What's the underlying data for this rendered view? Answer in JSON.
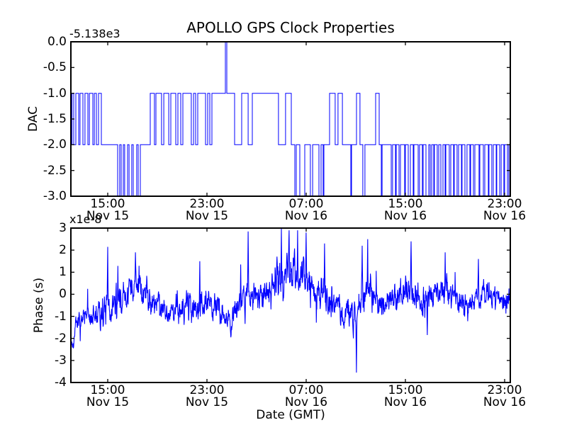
{
  "chart_data": {
    "type": "line",
    "title": "APOLLO GPS Clock Properties",
    "line_color": "#0000ff",
    "axis_color": "#000000",
    "background": "#ffffff",
    "x_axis": {
      "label": "Date (GMT)",
      "hours_total": 35.43,
      "tick_hours": [
        2.97,
        10.97,
        18.97,
        26.97,
        34.97
      ],
      "tick_time_labels": [
        "15:00",
        "23:00",
        "07:00",
        "15:00",
        "23:00"
      ],
      "tick_date_labels": [
        "Nov 15",
        "Nov 15",
        "Nov 16",
        "Nov 16",
        "Nov 16"
      ]
    },
    "subplots": [
      {
        "name": "dac",
        "ylabel": "DAC",
        "offset_text": "-5.138e3",
        "ylim": [
          -3,
          0
        ],
        "ytick_values": [
          0,
          -0.5,
          -1,
          -1.5,
          -2,
          -2.5,
          -3
        ],
        "ytick_labels": [
          "0.0",
          "-0.5",
          "-1.0",
          "-1.5",
          "-2.0",
          "-2.5",
          "-3.0"
        ],
        "series_type": "step",
        "transitions": [
          [
            0.0,
            -2
          ],
          [
            0.09,
            -1
          ],
          [
            0.23,
            -2
          ],
          [
            0.4,
            -1
          ],
          [
            0.63,
            -2
          ],
          [
            0.74,
            -1
          ],
          [
            0.97,
            -2
          ],
          [
            1.14,
            -1
          ],
          [
            1.37,
            -2
          ],
          [
            1.49,
            -1
          ],
          [
            1.77,
            -2
          ],
          [
            1.89,
            -1
          ],
          [
            2.06,
            -2
          ],
          [
            2.23,
            -1
          ],
          [
            2.46,
            -2
          ],
          [
            3.77,
            -3
          ],
          [
            3.94,
            -2
          ],
          [
            4.06,
            -3
          ],
          [
            4.23,
            -2
          ],
          [
            4.34,
            -3
          ],
          [
            4.57,
            -2
          ],
          [
            4.69,
            -3
          ],
          [
            4.91,
            -2
          ],
          [
            5.03,
            -3
          ],
          [
            5.31,
            -2
          ],
          [
            5.43,
            -3
          ],
          [
            5.6,
            -2
          ],
          [
            6.4,
            -1
          ],
          [
            6.74,
            -2
          ],
          [
            6.86,
            -1
          ],
          [
            7.31,
            -2
          ],
          [
            7.49,
            -1
          ],
          [
            7.89,
            -2
          ],
          [
            8.06,
            -1
          ],
          [
            8.46,
            -2
          ],
          [
            8.63,
            -1
          ],
          [
            8.86,
            -2
          ],
          [
            9.03,
            -1
          ],
          [
            9.71,
            -2
          ],
          [
            9.89,
            -1
          ],
          [
            10.06,
            -2
          ],
          [
            10.23,
            -1
          ],
          [
            10.86,
            -2
          ],
          [
            11.03,
            -1
          ],
          [
            11.2,
            -2
          ],
          [
            11.37,
            -1
          ],
          [
            12.46,
            0
          ],
          [
            12.57,
            -1
          ],
          [
            13.2,
            -2
          ],
          [
            13.77,
            -1
          ],
          [
            14.29,
            -2
          ],
          [
            14.63,
            -1
          ],
          [
            16.74,
            -2
          ],
          [
            17.31,
            -1
          ],
          [
            17.77,
            -2
          ],
          [
            18.06,
            -3
          ],
          [
            18.17,
            -2
          ],
          [
            18.46,
            -3
          ],
          [
            18.86,
            -2
          ],
          [
            19.31,
            -3
          ],
          [
            19.49,
            -2
          ],
          [
            20.0,
            -3
          ],
          [
            20.17,
            -2
          ],
          [
            20.34,
            -3
          ],
          [
            20.4,
            -2
          ],
          [
            20.86,
            -1
          ],
          [
            21.31,
            -2
          ],
          [
            21.54,
            -1
          ],
          [
            21.89,
            -2
          ],
          [
            22.57,
            -3
          ],
          [
            22.63,
            -2
          ],
          [
            23.03,
            -1
          ],
          [
            23.31,
            -2
          ],
          [
            23.54,
            -3
          ],
          [
            23.71,
            -2
          ],
          [
            24.57,
            -1
          ],
          [
            24.86,
            -2
          ],
          [
            25.03,
            -3
          ],
          [
            25.09,
            -2
          ],
          [
            25.83,
            -3
          ],
          [
            25.94,
            -2
          ],
          [
            26.17,
            -3
          ],
          [
            26.23,
            -2
          ],
          [
            26.46,
            -3
          ],
          [
            26.57,
            -2
          ],
          [
            26.91,
            -3
          ],
          [
            26.97,
            -2
          ],
          [
            27.2,
            -3
          ],
          [
            27.37,
            -2
          ],
          [
            27.6,
            -3
          ],
          [
            27.66,
            -2
          ],
          [
            28.0,
            -3
          ],
          [
            28.11,
            -2
          ],
          [
            28.34,
            -3
          ],
          [
            28.4,
            -2
          ],
          [
            28.63,
            -3
          ],
          [
            28.86,
            -2
          ],
          [
            28.97,
            -3
          ],
          [
            29.09,
            -2
          ],
          [
            29.26,
            -3
          ],
          [
            29.31,
            -2
          ],
          [
            29.54,
            -3
          ],
          [
            29.66,
            -2
          ],
          [
            29.83,
            -3
          ],
          [
            30.0,
            -2
          ],
          [
            30.17,
            -3
          ],
          [
            30.23,
            -2
          ],
          [
            30.51,
            -3
          ],
          [
            30.63,
            -2
          ],
          [
            30.86,
            -3
          ],
          [
            30.91,
            -2
          ],
          [
            31.14,
            -3
          ],
          [
            31.26,
            -2
          ],
          [
            31.49,
            -3
          ],
          [
            31.54,
            -2
          ],
          [
            31.77,
            -3
          ],
          [
            31.94,
            -2
          ],
          [
            32.17,
            -3
          ],
          [
            32.23,
            -2
          ],
          [
            32.46,
            -3
          ],
          [
            32.57,
            -2
          ],
          [
            32.91,
            -3
          ],
          [
            32.97,
            -2
          ],
          [
            33.26,
            -3
          ],
          [
            33.37,
            -2
          ],
          [
            33.66,
            -3
          ],
          [
            33.71,
            -2
          ],
          [
            33.94,
            -3
          ],
          [
            34.06,
            -2
          ],
          [
            34.29,
            -3
          ],
          [
            34.34,
            -2
          ],
          [
            34.57,
            -3
          ],
          [
            34.69,
            -2
          ],
          [
            34.91,
            -3
          ],
          [
            34.97,
            -2
          ],
          [
            35.2,
            -3
          ],
          [
            35.31,
            -2
          ]
        ]
      },
      {
        "name": "phase",
        "ylabel": "Phase (s)",
        "xlabel": "Date (GMT)",
        "offset_text": "x1e-8",
        "ylim": [
          -4,
          3
        ],
        "unit_scale": "1e-8 s",
        "ytick_values": [
          3,
          2,
          1,
          0,
          -1,
          -2,
          -3,
          -4
        ],
        "ytick_labels": [
          "3",
          "2",
          "1",
          "0",
          "-1",
          "-2",
          "-3",
          "-4"
        ],
        "series_type": "noisy-line",
        "keyframes": [
          [
            0.0,
            -2.05,
            0.25
          ],
          [
            0.15,
            -2.25,
            0.25
          ],
          [
            0.35,
            -1.6,
            0.3
          ],
          [
            0.7,
            -1.15,
            0.35
          ],
          [
            1.4,
            -1.0,
            0.4
          ],
          [
            2.3,
            -0.9,
            0.5
          ],
          [
            3.0,
            -0.75,
            0.6
          ],
          [
            3.7,
            -0.45,
            0.6
          ],
          [
            4.6,
            0.1,
            0.6
          ],
          [
            5.4,
            0.3,
            0.65
          ],
          [
            6.3,
            0.0,
            0.65
          ],
          [
            7.1,
            -0.4,
            0.55
          ],
          [
            7.9,
            -0.85,
            0.45
          ],
          [
            8.7,
            -0.6,
            0.5
          ],
          [
            9.6,
            -0.45,
            0.55
          ],
          [
            10.4,
            -0.4,
            0.55
          ],
          [
            11.3,
            -0.55,
            0.5
          ],
          [
            12.3,
            -0.85,
            0.5
          ],
          [
            12.9,
            -1.05,
            0.5
          ],
          [
            13.6,
            -0.35,
            0.55
          ],
          [
            14.3,
            0.05,
            0.7
          ],
          [
            14.9,
            -0.3,
            0.55
          ],
          [
            15.6,
            0.05,
            0.55
          ],
          [
            16.3,
            0.35,
            0.6
          ],
          [
            17.0,
            0.85,
            0.8
          ],
          [
            17.7,
            1.3,
            0.75
          ],
          [
            18.3,
            0.8,
            0.75
          ],
          [
            19.0,
            0.45,
            0.65
          ],
          [
            19.7,
            0.15,
            0.6
          ],
          [
            20.5,
            0.0,
            0.6
          ],
          [
            21.3,
            -0.5,
            0.5
          ],
          [
            22.2,
            -0.8,
            0.55
          ],
          [
            22.9,
            -0.95,
            0.6
          ],
          [
            23.25,
            -0.5,
            0.6
          ],
          [
            23.5,
            0.0,
            0.65
          ],
          [
            23.95,
            0.2,
            0.6
          ],
          [
            24.6,
            -0.2,
            0.55
          ],
          [
            25.3,
            -0.4,
            0.5
          ],
          [
            26.1,
            -0.1,
            0.55
          ],
          [
            26.7,
            0.1,
            0.6
          ],
          [
            27.4,
            0.1,
            0.6
          ],
          [
            28.1,
            -0.2,
            0.6
          ],
          [
            28.75,
            -0.4,
            0.6
          ],
          [
            29.4,
            0.1,
            0.55
          ],
          [
            30.2,
            0.1,
            0.6
          ],
          [
            30.9,
            -0.1,
            0.55
          ],
          [
            31.5,
            -0.3,
            0.5
          ],
          [
            32.2,
            -0.35,
            0.5
          ],
          [
            32.9,
            0.0,
            0.45
          ],
          [
            33.6,
            -0.05,
            0.45
          ],
          [
            34.3,
            -0.25,
            0.45
          ],
          [
            34.9,
            -0.3,
            0.45
          ],
          [
            35.43,
            -0.15,
            0.4
          ]
        ],
        "spikes": [
          [
            0.2,
            -2.45
          ],
          [
            2.97,
            2.15
          ],
          [
            5.2,
            1.9
          ],
          [
            10.4,
            1.5
          ],
          [
            12.9,
            -1.95
          ],
          [
            13.7,
            1.35
          ],
          [
            14.3,
            2.85
          ],
          [
            16.97,
            3.0
          ],
          [
            17.6,
            2.9
          ],
          [
            18.29,
            2.9
          ],
          [
            18.97,
            2.8
          ],
          [
            20.46,
            2.3
          ],
          [
            23.03,
            -3.55
          ],
          [
            23.49,
            2.2
          ],
          [
            23.94,
            2.5
          ],
          [
            27.43,
            2.4
          ],
          [
            28.74,
            -1.85
          ],
          [
            30.17,
            1.9
          ],
          [
            32.86,
            1.6
          ]
        ],
        "noise": {
          "seed": 7,
          "samples": 1600,
          "ar": 0.5,
          "gain": 1.6,
          "tail_prob": 0.03,
          "tail_mult": 2.0
        }
      }
    ]
  }
}
